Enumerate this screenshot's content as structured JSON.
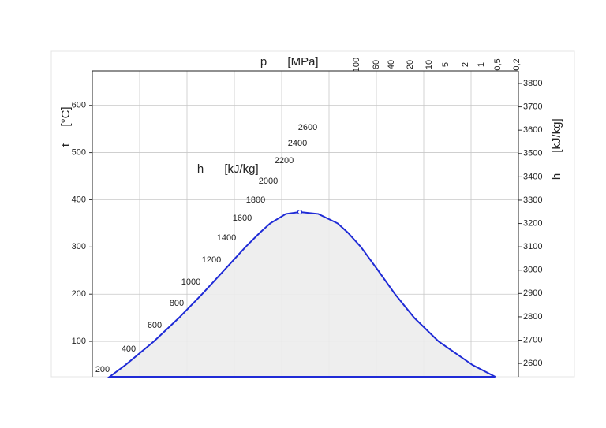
{
  "chart_data": {
    "type": "ts-diagram",
    "p_label": "p",
    "p_unit": "[MPa]",
    "t_label": "t",
    "t_unit": "[°C]",
    "h_label": "h",
    "h_unit": "[kJ/kg]",
    "xlim": [
      0,
      9.05
    ],
    "ylim": [
      25,
      673
    ],
    "yticks": [
      100,
      200,
      300,
      400,
      500,
      600
    ],
    "y2lim": [
      2543,
      3854
    ],
    "y2ticks": [
      2600,
      2700,
      2800,
      2900,
      3000,
      3100,
      3200,
      3300,
      3400,
      3500,
      3600,
      3700,
      3800
    ],
    "pressure_labels": [
      100,
      60,
      40,
      20,
      10,
      5,
      2,
      1,
      {
        "value": 0.5,
        "label": "0,5"
      },
      {
        "value": 0.2,
        "label": "0,2"
      }
    ],
    "enthalpy_labels": [
      200,
      400,
      600,
      800,
      1000,
      1200,
      1400,
      1600,
      1800,
      2000,
      2200,
      2400,
      2600
    ],
    "grid": true,
    "series": [
      {
        "color": "#1f2bd6",
        "x": [
          0.367,
          0.704,
          1.307,
          1.842,
          2.331,
          2.793,
          3.255,
          3.556,
          3.778,
          4.111,
          4.407,
          4.801,
          5.211,
          5.431,
          5.705,
          6.072,
          6.43,
          6.837,
          7.354,
          8.075,
          8.558
        ],
        "values": [
          25,
          50,
          100,
          150,
          200,
          250,
          300,
          330,
          350,
          370,
          373.95,
          370,
          350,
          330,
          300,
          250,
          200,
          150,
          100,
          50,
          25
        ]
      }
    ]
  }
}
